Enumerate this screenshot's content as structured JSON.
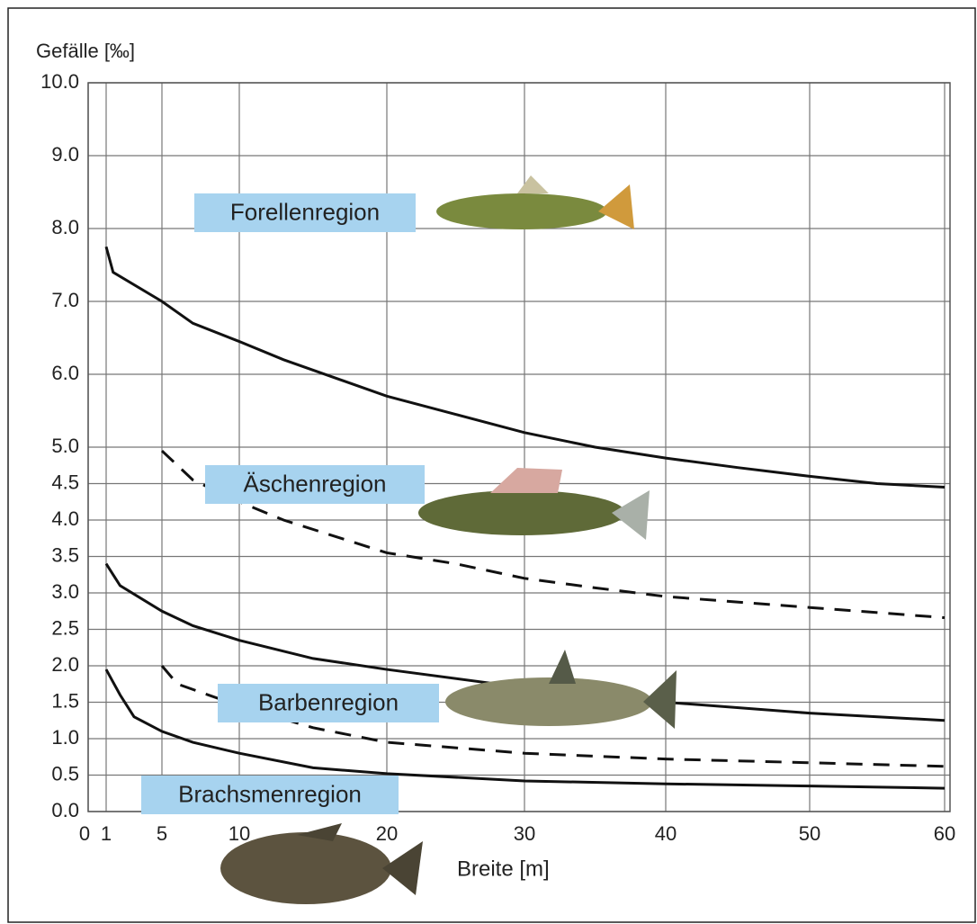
{
  "chart_data": {
    "type": "line",
    "y_label": "Gefälle [‰]",
    "x_label": "Breite [m]",
    "xlim": [
      0,
      60
    ],
    "xticks": [
      0,
      1,
      5,
      10,
      20,
      30,
      40,
      50,
      60
    ],
    "ylim": [
      0,
      10
    ],
    "yticks": [
      {
        "value": 0,
        "label": "0.0"
      },
      {
        "value": 0.5,
        "label": "0.5"
      },
      {
        "value": 1,
        "label": "1.0"
      },
      {
        "value": 1.5,
        "label": "1.5"
      },
      {
        "value": 2,
        "label": "2.0"
      },
      {
        "value": 2.5,
        "label": "2.5"
      },
      {
        "value": 3,
        "label": "3.0"
      },
      {
        "value": 3.5,
        "label": "3.5"
      },
      {
        "value": 4,
        "label": "4.0"
      },
      {
        "value": 4.5,
        "label": "4.5"
      },
      {
        "value": 5,
        "label": "5.0"
      },
      {
        "value": 6,
        "label": "6.0"
      },
      {
        "value": 7,
        "label": "7.0"
      },
      {
        "value": 8,
        "label": "8.0"
      },
      {
        "value": 9,
        "label": "9.0"
      },
      {
        "value": 10,
        "label": "10.0"
      }
    ],
    "grid": true,
    "series": [
      {
        "color": "#111111",
        "style": "solid",
        "x": [
          1,
          1.5,
          5,
          7,
          10,
          13,
          20,
          25,
          30,
          35,
          40,
          45,
          50,
          55,
          60
        ],
        "values": [
          7.75,
          7.4,
          7.0,
          6.7,
          6.45,
          6.2,
          5.7,
          5.45,
          5.2,
          5.0,
          4.85,
          4.72,
          4.6,
          4.5,
          4.45
        ]
      },
      {
        "color": "#111111",
        "style": "dashed",
        "x": [
          5,
          7,
          10,
          13,
          20,
          25,
          30,
          35,
          40,
          50,
          60
        ],
        "values": [
          4.95,
          4.55,
          4.25,
          4.0,
          3.55,
          3.4,
          3.2,
          3.07,
          2.95,
          2.8,
          2.66
        ]
      },
      {
        "color": "#111111",
        "style": "solid",
        "x": [
          1,
          2,
          5,
          7,
          10,
          15,
          20,
          30,
          40,
          50,
          60
        ],
        "values": [
          3.4,
          3.1,
          2.75,
          2.55,
          2.35,
          2.1,
          1.95,
          1.7,
          1.5,
          1.35,
          1.25
        ]
      },
      {
        "color": "#111111",
        "style": "dashed",
        "x": [
          5,
          6,
          8,
          10,
          15,
          20,
          30,
          40,
          50,
          60
        ],
        "values": [
          2.0,
          1.75,
          1.6,
          1.45,
          1.15,
          0.95,
          0.8,
          0.72,
          0.67,
          0.62
        ]
      },
      {
        "color": "#111111",
        "style": "solid",
        "x": [
          1,
          2,
          3,
          5,
          7,
          10,
          15,
          20,
          30,
          40,
          50,
          60
        ],
        "values": [
          1.95,
          1.6,
          1.3,
          1.1,
          0.95,
          0.8,
          0.6,
          0.52,
          0.42,
          0.38,
          0.35,
          0.32
        ]
      }
    ],
    "annotations": [
      "Forellenregion",
      "Äschenregion",
      "Barbenregion",
      "Brachsmenregion"
    ],
    "annotation_color": "#a7d3ef"
  }
}
